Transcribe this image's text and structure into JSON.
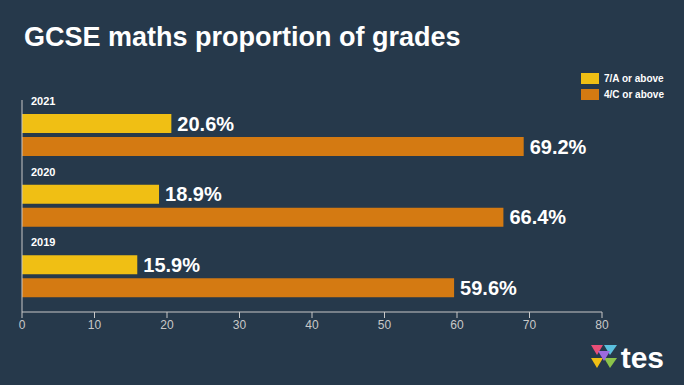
{
  "chart_data": {
    "type": "bar",
    "orientation": "horizontal",
    "title": "GCSE maths proportion of grades",
    "categories": [
      "2021",
      "2020",
      "2019"
    ],
    "series": [
      {
        "name": "7/A or above",
        "color": "#f0bf14",
        "values": [
          20.6,
          18.9,
          15.9
        ],
        "value_labels": [
          "20.6%",
          "18.9%",
          "15.9%"
        ]
      },
      {
        "name": "4/C or above",
        "color": "#d47a12",
        "values": [
          69.2,
          66.4,
          59.6
        ],
        "value_labels": [
          "69.2%",
          "66.4%",
          "59.6%"
        ]
      }
    ],
    "xlim": [
      0,
      80
    ],
    "xticks": [
      0,
      10,
      20,
      30,
      40,
      50,
      60,
      70,
      80
    ],
    "data_labels": true,
    "legend": "top right",
    "grid": false,
    "annotations": [
      "tes"
    ]
  }
}
